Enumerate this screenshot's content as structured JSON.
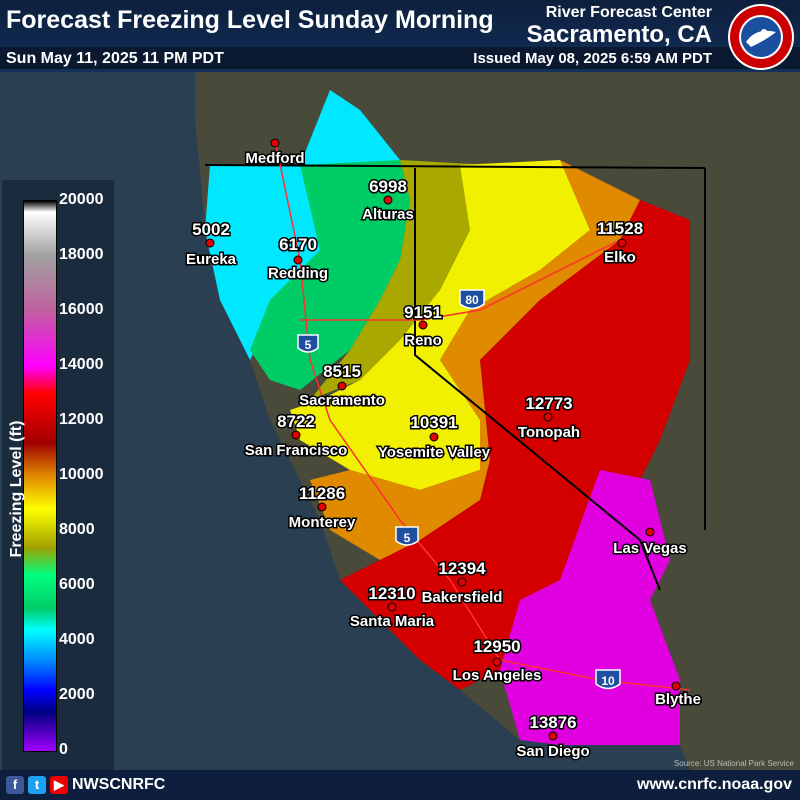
{
  "header": {
    "title": "Forecast Freezing Level Sunday Morning",
    "valid_time": "Sun May 11, 2025 11 PM PDT",
    "rfc_name": "River Forecast Center",
    "office": "Sacramento, CA",
    "issued": "Issued May 08, 2025 6:59 AM PDT",
    "logo_text": "NATIONAL WEATHER SERVICE"
  },
  "legend": {
    "label": "Freezing Level (ft)",
    "ticks": [
      "20000",
      "18000",
      "16000",
      "14000",
      "12000",
      "10000",
      "8000",
      "6000",
      "4000",
      "2000",
      "0"
    ],
    "colors": [
      "#000000",
      "#ffffff",
      "#a0a0a0",
      "#c060a0",
      "#ff00ff",
      "#ff0000",
      "#a00000",
      "#ffa500",
      "#ffff00",
      "#a0a000",
      "#00ff80",
      "#00ffff",
      "#0080ff",
      "#0000ff",
      "#000080",
      "#a000ff"
    ]
  },
  "points": [
    {
      "city": "Medford",
      "value": ""
    },
    {
      "city": "Eureka",
      "value": "5002"
    },
    {
      "city": "Alturas",
      "value": "6998"
    },
    {
      "city": "Redding",
      "value": "6170"
    },
    {
      "city": "Elko",
      "value": "11528"
    },
    {
      "city": "Reno",
      "value": "9151"
    },
    {
      "city": "Sacramento",
      "value": "8515"
    },
    {
      "city": "San Francisco",
      "value": "8722"
    },
    {
      "city": "Yosemite Valley",
      "value": "10391"
    },
    {
      "city": "Tonopah",
      "value": "12773"
    },
    {
      "city": "Monterey",
      "value": "11286"
    },
    {
      "city": "Las Vegas",
      "value": ""
    },
    {
      "city": "Bakersfield",
      "value": "12394"
    },
    {
      "city": "Santa Maria",
      "value": "12310"
    },
    {
      "city": "Los Angeles",
      "value": "12950"
    },
    {
      "city": "Blythe",
      "value": ""
    },
    {
      "city": "San Diego",
      "value": "13876"
    }
  ],
  "highways": [
    "5",
    "80",
    "5",
    "10"
  ],
  "footer": {
    "handle": "NWSCNRFC",
    "website": "www.cnrfc.noaa.gov",
    "source": "Source: US National Park Service"
  }
}
